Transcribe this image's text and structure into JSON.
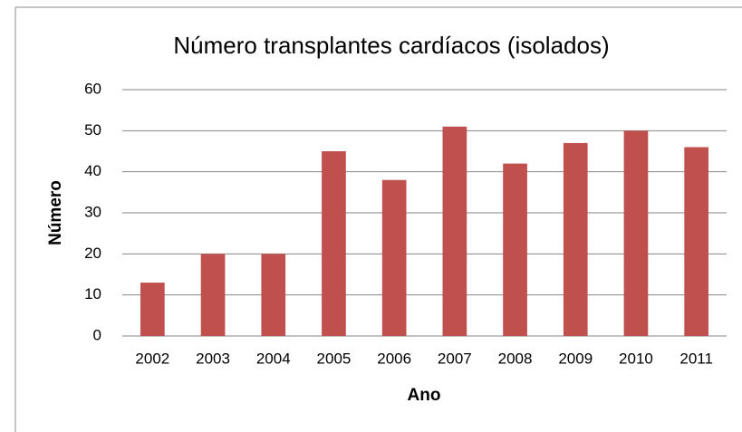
{
  "chart_data": {
    "type": "bar",
    "title": "Número transplantes cardíacos (isolados)",
    "x_label": "Ano",
    "y_label": "Número",
    "categories": [
      "2002",
      "2003",
      "2004",
      "2005",
      "2006",
      "2007",
      "2008",
      "2009",
      "2010",
      "2011"
    ],
    "values": [
      13,
      20,
      20,
      45,
      38,
      51,
      42,
      47,
      50,
      46
    ],
    "color": "#c0504d",
    "ylim": [
      0,
      60
    ],
    "yticks": [
      0,
      10,
      20,
      30,
      40,
      50,
      60
    ],
    "grid": true
  }
}
